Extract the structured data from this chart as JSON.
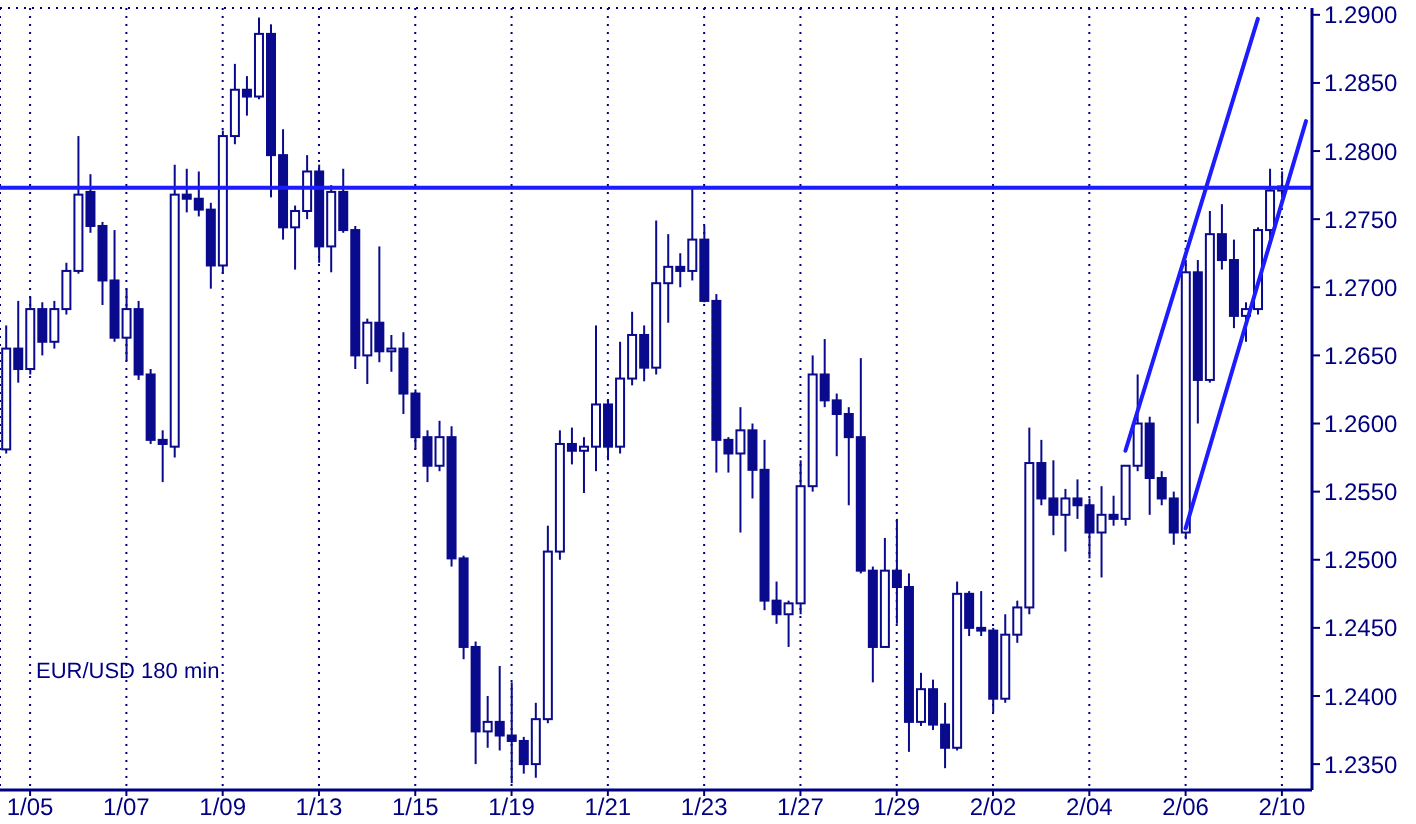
{
  "chart_data": {
    "type": "candlestick",
    "title": "EUR/USD 180 min",
    "color": "#0a0a8c",
    "categories": [
      null,
      null,
      "1/05",
      null,
      null,
      null,
      null,
      null,
      null,
      null,
      "1/07",
      null,
      null,
      null,
      null,
      null,
      null,
      null,
      "1/09",
      null,
      null,
      null,
      null,
      null,
      null,
      null,
      "1/13",
      null,
      null,
      null,
      null,
      null,
      null,
      null,
      "1/15",
      null,
      null,
      null,
      null,
      null,
      null,
      null,
      "1/19",
      null,
      null,
      null,
      null,
      null,
      null,
      null,
      "1/21",
      null,
      null,
      null,
      null,
      null,
      null,
      null,
      "1/23",
      null,
      null,
      null,
      null,
      null,
      null,
      null,
      "1/27",
      null,
      null,
      null,
      null,
      null,
      null,
      null,
      "1/29",
      null,
      null,
      null,
      null,
      null,
      null,
      null,
      "2/02",
      null,
      null,
      null,
      null,
      null,
      null,
      null,
      "2/04",
      null,
      null,
      null,
      null,
      null,
      null,
      null,
      "2/06",
      null,
      null,
      null,
      null,
      null,
      null,
      null,
      "2/10",
      null,
      null
    ],
    "ohlc": [
      [
        1.2581,
        1.2672,
        1.2578,
        1.2655
      ],
      [
        1.2655,
        1.269,
        1.263,
        1.264
      ],
      [
        1.264,
        1.2693,
        1.2636,
        1.2684
      ],
      [
        1.2684,
        1.2689,
        1.265,
        1.266
      ],
      [
        1.266,
        1.269,
        1.2655,
        1.2684
      ],
      [
        1.2684,
        1.2718,
        1.268,
        1.2712
      ],
      [
        1.2712,
        1.2811,
        1.271,
        1.2768
      ],
      [
        1.277,
        1.2783,
        1.274,
        1.2745
      ],
      [
        1.2745,
        1.2748,
        1.2687,
        1.2705
      ],
      [
        1.2705,
        1.2742,
        1.266,
        1.2663
      ],
      [
        1.2663,
        1.2699,
        1.2646,
        1.2684
      ],
      [
        1.2684,
        1.269,
        1.2632,
        1.2636
      ],
      [
        1.2636,
        1.264,
        1.2585,
        1.2588
      ],
      [
        1.2588,
        1.2595,
        1.2557,
        1.2585
      ],
      [
        1.2583,
        1.279,
        1.2575,
        1.2768
      ],
      [
        1.2768,
        1.2787,
        1.2755,
        1.2765
      ],
      [
        1.2765,
        1.2785,
        1.2752,
        1.2757
      ],
      [
        1.2757,
        1.2762,
        1.2699,
        1.2716
      ],
      [
        1.2716,
        1.2815,
        1.271,
        1.2811
      ],
      [
        1.2811,
        1.2864,
        1.2805,
        1.2845
      ],
      [
        1.2845,
        1.2855,
        1.2826,
        1.284
      ],
      [
        1.284,
        1.2898,
        1.2838,
        1.2886
      ],
      [
        1.2886,
        1.2893,
        1.2766,
        1.2797
      ],
      [
        1.2797,
        1.2816,
        1.2735,
        1.2744
      ],
      [
        1.2744,
        1.276,
        1.2713,
        1.2756
      ],
      [
        1.2756,
        1.2797,
        1.275,
        1.2785
      ],
      [
        1.2785,
        1.279,
        1.2718,
        1.273
      ],
      [
        1.273,
        1.2775,
        1.2711,
        1.277
      ],
      [
        1.277,
        1.2787,
        1.274,
        1.2742
      ],
      [
        1.2742,
        1.2745,
        1.264,
        1.265
      ],
      [
        1.265,
        1.2677,
        1.2629,
        1.2674
      ],
      [
        1.2674,
        1.273,
        1.2645,
        1.2653
      ],
      [
        1.2653,
        1.2665,
        1.2638,
        1.2655
      ],
      [
        1.2655,
        1.2667,
        1.2607,
        1.2622
      ],
      [
        1.2622,
        1.2625,
        1.2581,
        1.259
      ],
      [
        1.259,
        1.2595,
        1.2557,
        1.2569
      ],
      [
        1.2569,
        1.2602,
        1.2565,
        1.259
      ],
      [
        1.259,
        1.2598,
        1.2495,
        1.2501
      ],
      [
        1.2501,
        1.2503,
        1.2427,
        1.2436
      ],
      [
        1.2436,
        1.244,
        1.235,
        1.2374
      ],
      [
        1.2374,
        1.24,
        1.2362,
        1.2381
      ],
      [
        1.2381,
        1.2422,
        1.236,
        1.2371
      ],
      [
        1.2371,
        1.241,
        1.2336,
        1.2367
      ],
      [
        1.2367,
        1.237,
        1.2343,
        1.235
      ],
      [
        1.235,
        1.2395,
        1.234,
        1.2383
      ],
      [
        1.2383,
        1.2525,
        1.238,
        1.2506
      ],
      [
        1.2506,
        1.2595,
        1.25,
        1.2585
      ],
      [
        1.2585,
        1.2597,
        1.257,
        1.258
      ],
      [
        1.258,
        1.259,
        1.2549,
        1.2583
      ],
      [
        1.2583,
        1.2672,
        1.2565,
        1.2614
      ],
      [
        1.2614,
        1.2618,
        1.2573,
        1.2583
      ],
      [
        1.2583,
        1.266,
        1.2578,
        1.2633
      ],
      [
        1.2633,
        1.2682,
        1.2628,
        1.2665
      ],
      [
        1.2665,
        1.2672,
        1.2631,
        1.2641
      ],
      [
        1.2641,
        1.2749,
        1.2636,
        1.2703
      ],
      [
        1.2703,
        1.2739,
        1.2674,
        1.2715
      ],
      [
        1.2715,
        1.2725,
        1.27,
        1.2712
      ],
      [
        1.2712,
        1.2773,
        1.2705,
        1.2735
      ],
      [
        1.2735,
        1.2745,
        1.2689,
        1.269
      ],
      [
        1.269,
        1.2695,
        1.2564,
        1.2588
      ],
      [
        1.2588,
        1.259,
        1.2564,
        1.2578
      ],
      [
        1.2578,
        1.2612,
        1.252,
        1.2595
      ],
      [
        1.2595,
        1.26,
        1.2545,
        1.2566
      ],
      [
        1.2566,
        1.2588,
        1.2463,
        1.247
      ],
      [
        1.247,
        1.2484,
        1.2453,
        1.246
      ],
      [
        1.246,
        1.247,
        1.2436,
        1.2468
      ],
      [
        1.2468,
        1.2573,
        1.246,
        1.2554
      ],
      [
        1.2554,
        1.265,
        1.255,
        1.2636
      ],
      [
        1.2636,
        1.2662,
        1.2612,
        1.2617
      ],
      [
        1.2617,
        1.2622,
        1.2576,
        1.2607
      ],
      [
        1.2607,
        1.2612,
        1.254,
        1.259
      ],
      [
        1.259,
        1.2648,
        1.249,
        1.2492
      ],
      [
        1.2492,
        1.2495,
        1.241,
        1.2436
      ],
      [
        1.2436,
        1.2516,
        1.2436,
        1.2492
      ],
      [
        1.2492,
        1.253,
        1.2453,
        1.248
      ],
      [
        1.248,
        1.249,
        1.2359,
        1.2381
      ],
      [
        1.2381,
        1.2417,
        1.2378,
        1.2405
      ],
      [
        1.2405,
        1.2412,
        1.2375,
        1.2379
      ],
      [
        1.2379,
        1.2395,
        1.2347,
        1.2362
      ],
      [
        1.2362,
        1.2484,
        1.236,
        1.2475
      ],
      [
        1.2475,
        1.2477,
        1.2444,
        1.245
      ],
      [
        1.245,
        1.2477,
        1.2444,
        1.2448
      ],
      [
        1.2448,
        1.245,
        1.2388,
        1.2398
      ],
      [
        1.2398,
        1.246,
        1.2395,
        1.2445
      ],
      [
        1.2445,
        1.247,
        1.2439,
        1.2465
      ],
      [
        1.2465,
        1.2597,
        1.246,
        1.2571
      ],
      [
        1.2571,
        1.2588,
        1.254,
        1.2545
      ],
      [
        1.2545,
        1.2573,
        1.2518,
        1.2533
      ],
      [
        1.2533,
        1.2552,
        1.2506,
        1.2545
      ],
      [
        1.2545,
        1.2559,
        1.253,
        1.254
      ],
      [
        1.254,
        1.2545,
        1.2501,
        1.252
      ],
      [
        1.252,
        1.2554,
        1.2487,
        1.2533
      ],
      [
        1.2533,
        1.2547,
        1.2525,
        1.253
      ],
      [
        1.253,
        1.2569,
        1.2525,
        1.2569
      ],
      [
        1.2569,
        1.2636,
        1.2565,
        1.26
      ],
      [
        1.26,
        1.2605,
        1.2533,
        1.256
      ],
      [
        1.256,
        1.2565,
        1.254,
        1.2545
      ],
      [
        1.2545,
        1.255,
        1.2511,
        1.252
      ],
      [
        1.252,
        1.272,
        1.2515,
        1.2711
      ],
      [
        1.2711,
        1.272,
        1.26,
        1.2632
      ],
      [
        1.2632,
        1.2756,
        1.263,
        1.2739
      ],
      [
        1.2739,
        1.2761,
        1.2713,
        1.272
      ],
      [
        1.272,
        1.2735,
        1.267,
        1.2679
      ],
      [
        1.2679,
        1.2689,
        1.266,
        1.2684
      ],
      [
        1.2684,
        1.2744,
        1.268,
        1.2742
      ],
      [
        1.2742,
        1.2787,
        1.2735,
        1.2771
      ],
      [
        1.2771,
        1.2785,
        1.2766,
        1.2774
      ],
      null,
      null
    ],
    "series": [
      {
        "type": "line",
        "color": "#1c1cff",
        "values": [
          null,
          null,
          null,
          null,
          null,
          null,
          null,
          null,
          null,
          null,
          null,
          null,
          null,
          null,
          null,
          null,
          null,
          null,
          null,
          null,
          null,
          null,
          null,
          null,
          null,
          null,
          null,
          null,
          null,
          null,
          null,
          null,
          null,
          null,
          null,
          null,
          null,
          null,
          null,
          null,
          null,
          null,
          null,
          null,
          null,
          null,
          null,
          null,
          null,
          null,
          null,
          null,
          null,
          null,
          null,
          null,
          null,
          null,
          null,
          null,
          null,
          null,
          null,
          null,
          null,
          null,
          null,
          null,
          null,
          null,
          null,
          null,
          null,
          null,
          null,
          null,
          null,
          null,
          null,
          null,
          null,
          null,
          null,
          null,
          null,
          null,
          null,
          null,
          null,
          null,
          null,
          null,
          null,
          1.258,
          null,
          null,
          null,
          null,
          null,
          null,
          null,
          null,
          null,
          null,
          1.2897,
          null,
          null,
          null,
          null
        ]
      },
      {
        "type": "line",
        "color": "#1c1cff",
        "values": [
          null,
          null,
          null,
          null,
          null,
          null,
          null,
          null,
          null,
          null,
          null,
          null,
          null,
          null,
          null,
          null,
          null,
          null,
          null,
          null,
          null,
          null,
          null,
          null,
          null,
          null,
          null,
          null,
          null,
          null,
          null,
          null,
          null,
          null,
          null,
          null,
          null,
          null,
          null,
          null,
          null,
          null,
          null,
          null,
          null,
          null,
          null,
          null,
          null,
          null,
          null,
          null,
          null,
          null,
          null,
          null,
          null,
          null,
          null,
          null,
          null,
          null,
          null,
          null,
          null,
          null,
          null,
          null,
          null,
          null,
          null,
          null,
          null,
          null,
          null,
          null,
          null,
          null,
          null,
          null,
          null,
          null,
          null,
          null,
          null,
          null,
          null,
          null,
          null,
          null,
          null,
          null,
          null,
          null,
          null,
          null,
          null,
          null,
          1.2523,
          null,
          null,
          null,
          null,
          null,
          null,
          null,
          null,
          null,
          1.2822
        ]
      }
    ],
    "ylim": [
      1.2331,
      1.2905
    ],
    "yticks": [
      {
        "value": 1.235,
        "label": "1.2350"
      },
      {
        "value": 1.24,
        "label": "1.2400"
      },
      {
        "value": 1.245,
        "label": "1.2450"
      },
      {
        "value": 1.25,
        "label": "1.2500"
      },
      {
        "value": 1.255,
        "label": "1.2550"
      },
      {
        "value": 1.26,
        "label": "1.2600"
      },
      {
        "value": 1.265,
        "label": "1.2650"
      },
      {
        "value": 1.27,
        "label": "1.2700"
      },
      {
        "value": 1.275,
        "label": "1.2750"
      },
      {
        "value": 1.28,
        "label": "1.2800"
      },
      {
        "value": 1.285,
        "label": "1.2850"
      },
      {
        "value": 1.29,
        "label": "1.2900"
      }
    ],
    "ref_lines": [
      {
        "axis": "y",
        "value": 1.2773,
        "color": "#1c1cff"
      }
    ],
    "grid": true
  }
}
